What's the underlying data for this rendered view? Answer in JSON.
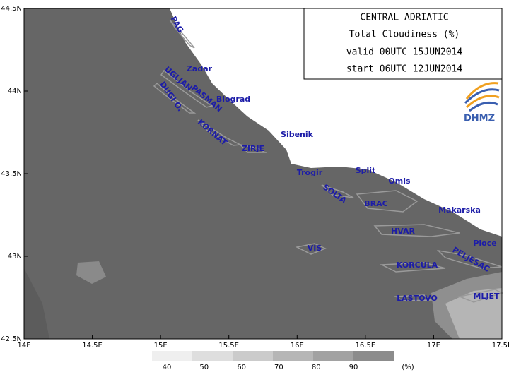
{
  "map": {
    "info": [
      "CENTRAL ADRIATIC",
      "Total Cloudiness (%)",
      "valid 00UTC 15JUN2014",
      "start 06UTC 12JUN2014"
    ],
    "logo": "DHMZ",
    "xlim": [
      14,
      17.5
    ],
    "ylim": [
      42.5,
      44.5
    ],
    "xticks": [
      {
        "value": 14,
        "label": "14E"
      },
      {
        "value": 14.5,
        "label": "14.5E"
      },
      {
        "value": 15,
        "label": "15E"
      },
      {
        "value": 15.5,
        "label": "15.5E"
      },
      {
        "value": 16,
        "label": "16E"
      },
      {
        "value": 16.5,
        "label": "16.5E"
      },
      {
        "value": 17,
        "label": "17E"
      },
      {
        "value": 17.5,
        "label": "17.5E"
      }
    ],
    "yticks": [
      {
        "value": 42.5,
        "label": "42.5N"
      },
      {
        "value": 43,
        "label": "43N"
      },
      {
        "value": 43.5,
        "label": "43.5N"
      },
      {
        "value": 44,
        "label": "44N"
      },
      {
        "value": 44.5,
        "label": "44.5N"
      }
    ],
    "places": [
      "PAG",
      "Zadar",
      "UGLJAN",
      "PASMAN",
      "Biograd",
      "DUGI O.",
      "KORNAT",
      "Sibenik",
      "ZIRJE",
      "Trogir",
      "Split",
      "Omis",
      "SOLTA",
      "BRAC",
      "Makarska",
      "HVAR",
      "Ploce",
      "VIS",
      "PELJESAC",
      "KORCULA",
      "LASTOVO",
      "MLJET"
    ],
    "legend": {
      "levels": [
        40,
        50,
        60,
        70,
        80,
        90
      ],
      "unit": "(%)",
      "colors": [
        "#efefef",
        "#dedede",
        "#cbcbcb",
        "#b6b6b6",
        "#a2a2a2",
        "#8c8c8c"
      ]
    }
  }
}
